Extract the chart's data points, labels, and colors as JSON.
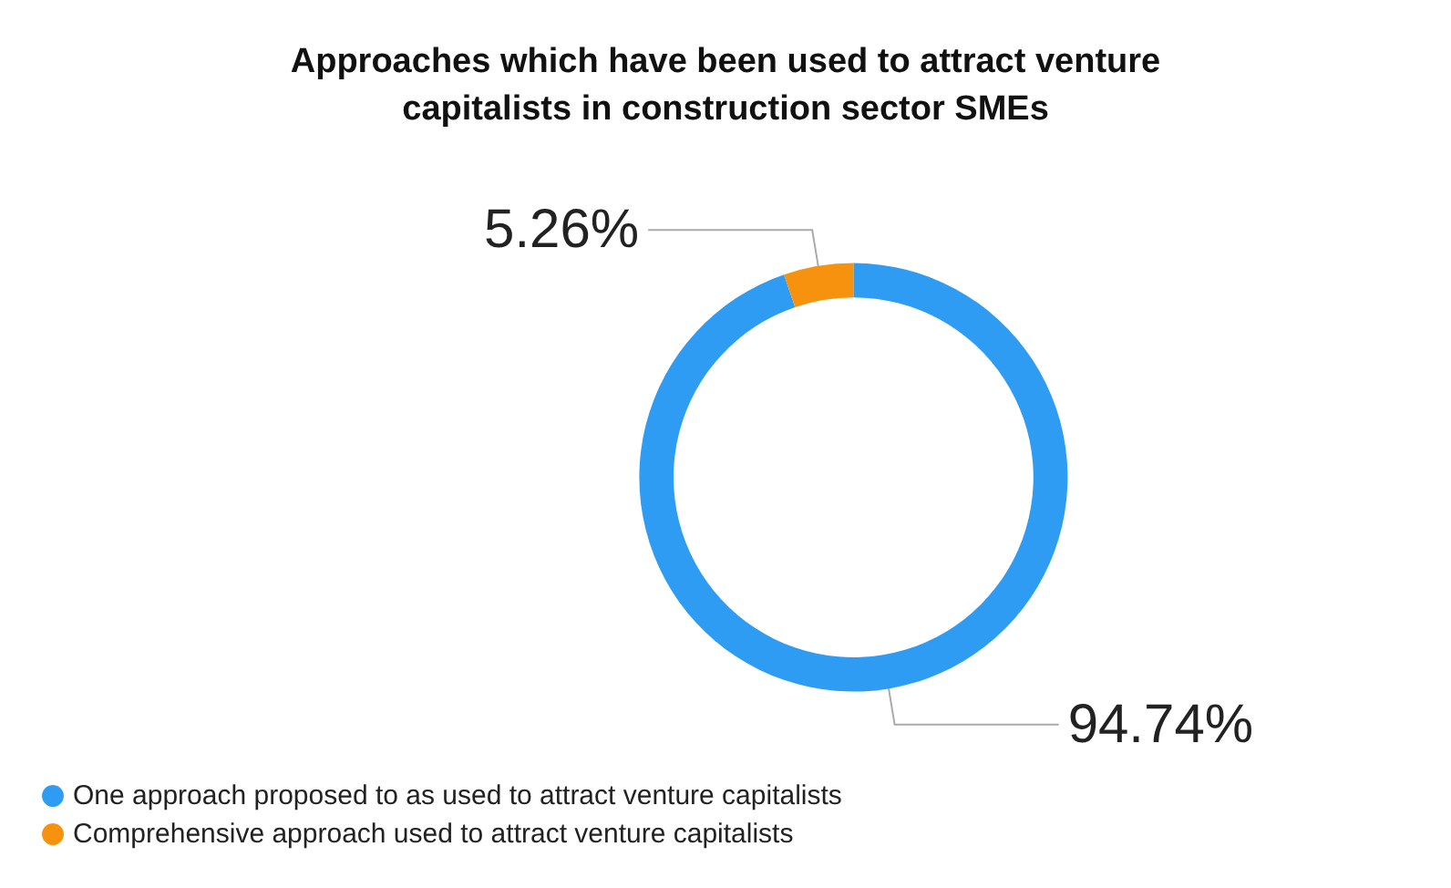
{
  "chart_data": {
    "type": "donut",
    "title": "Approaches which have been used to attract venture\ncapitalists in construction sector SMEs",
    "categories": [
      "One approach proposed to as used to attract venture capitalists",
      "Comprehensive approach used to attract venture capitalists"
    ],
    "values": [
      94.74,
      5.26
    ],
    "value_labels": [
      "94.74%",
      "5.26%"
    ],
    "colors": [
      "#2f9cf4",
      "#f7920f"
    ],
    "legend": "bottom left"
  }
}
